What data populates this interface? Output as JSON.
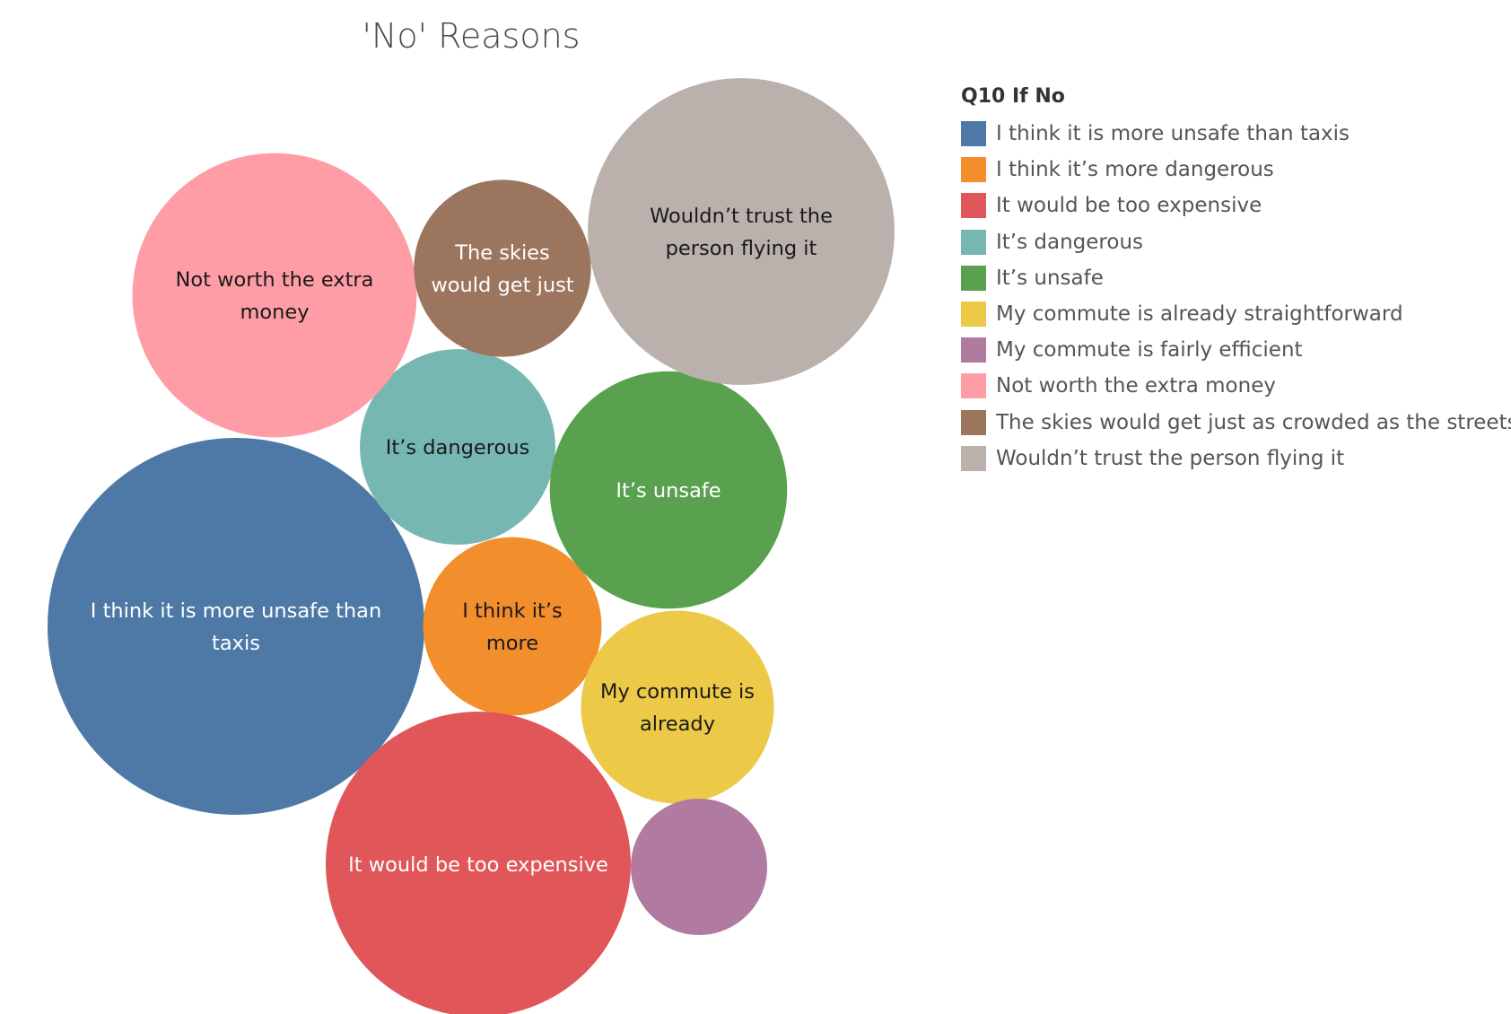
{
  "chart_data": {
    "type": "bubble",
    "title": "'No' Reasons",
    "legend_title": "Q10 If No",
    "legend_position": "right",
    "series": [
      {
        "name": "I think it is more unsafe than taxis",
        "value": 29,
        "color": "#4e79a7",
        "label_lines": [
          "I think it is more unsafe than",
          "taxis"
        ],
        "label_color": "#ffffff"
      },
      {
        "name": "I think it’s more dangerous",
        "value": 6.5,
        "color": "#f28e2b",
        "label_lines": [
          "I think it’s",
          "more"
        ],
        "label_color": "#1a1a1a"
      },
      {
        "name": "It would be too expensive",
        "value": 19,
        "color": "#e15759",
        "label_lines": [
          "It would be too expensive"
        ],
        "label_color": "#ffffff"
      },
      {
        "name": "It’s dangerous",
        "value": 7.8,
        "color": "#76b7b2",
        "label_lines": [
          "It’s dangerous"
        ],
        "label_color": "#1a1a1a"
      },
      {
        "name": "It’s unsafe",
        "value": 11.5,
        "color": "#59a14f",
        "label_lines": [
          "It’s unsafe"
        ],
        "label_color": "#ffffff"
      },
      {
        "name": "My commute is already straightforward",
        "value": 7.6,
        "color": "#edc948",
        "label_lines": [
          "My commute is",
          "already"
        ],
        "label_color": "#1a1a1a"
      },
      {
        "name": "My commute is fairly efficient",
        "value": 3.8,
        "color": "#b07aa1",
        "label_lines": [],
        "label_color": "#ffffff"
      },
      {
        "name": "Not worth the extra money",
        "value": 16.5,
        "color": "#ff9da7",
        "label_lines": [
          "Not worth the extra",
          "money"
        ],
        "label_color": "#1a1a1a"
      },
      {
        "name": "The skies would get just as crowded as the streets",
        "value": 6.4,
        "color": "#9c755f",
        "label_lines": [
          "The skies",
          "would get just"
        ],
        "label_color": "#ffffff"
      },
      {
        "name": "Wouldn’t trust the person flying it",
        "value": 19.2,
        "color": "#bab0ac",
        "label_lines": [
          "Wouldn’t trust the",
          "person flying it"
        ],
        "label_color": "#1a1a1a"
      }
    ]
  }
}
